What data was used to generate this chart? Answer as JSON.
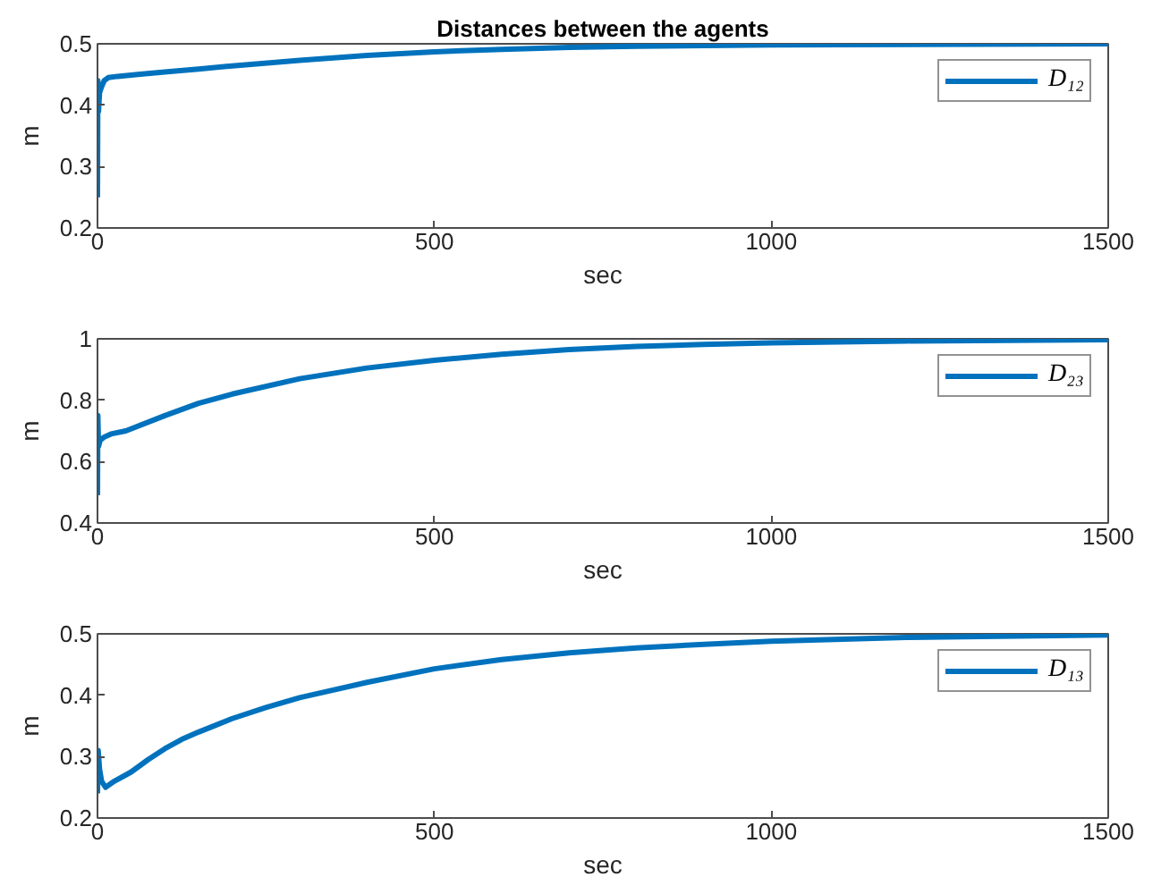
{
  "chart_data": [
    {
      "type": "line",
      "title": "Distances between the agents",
      "xlabel": "sec",
      "ylabel": "m",
      "x": [
        0,
        0.5,
        1.5,
        3,
        6,
        10,
        16,
        30,
        60,
        100,
        150,
        200,
        300,
        400,
        500,
        600,
        700,
        800,
        900,
        1000,
        1200,
        1500
      ],
      "series": [
        {
          "name": "D₁₂",
          "color": "#0072bd",
          "values": [
            0.25,
            0.44,
            0.39,
            0.42,
            0.43,
            0.44,
            0.445,
            0.447,
            0.45,
            0.454,
            0.459,
            0.464,
            0.473,
            0.481,
            0.487,
            0.491,
            0.494,
            0.496,
            0.497,
            0.498,
            0.499,
            0.5
          ]
        }
      ],
      "xlim": [
        0,
        1500
      ],
      "xticks": [
        0,
        500,
        1000,
        1500
      ],
      "ylim": [
        0.2,
        0.5
      ],
      "yticks": [
        0.2,
        0.3,
        0.4,
        0.5
      ],
      "legend": "top right"
    },
    {
      "type": "line",
      "xlabel": "sec",
      "ylabel": "m",
      "x": [
        0,
        0.5,
        1.5,
        4,
        10,
        20,
        42,
        100,
        150,
        200,
        300,
        400,
        500,
        600,
        700,
        800,
        900,
        1000,
        1200,
        1500
      ],
      "series": [
        {
          "name": "D₂₃",
          "color": "#0072bd",
          "values": [
            0.49,
            0.75,
            0.65,
            0.67,
            0.68,
            0.69,
            0.7,
            0.75,
            0.79,
            0.82,
            0.87,
            0.905,
            0.93,
            0.95,
            0.965,
            0.975,
            0.982,
            0.987,
            0.993,
            0.997
          ]
        }
      ],
      "xlim": [
        0,
        1500
      ],
      "xticks": [
        0,
        500,
        1000,
        1500
      ],
      "ylim": [
        0.4,
        1
      ],
      "yticks": [
        0.4,
        0.6,
        0.8,
        1
      ],
      "legend": "top right"
    },
    {
      "type": "line",
      "xlabel": "sec",
      "ylabel": "m",
      "x": [
        0,
        1,
        3,
        6,
        12,
        25,
        50,
        75,
        100,
        125,
        150,
        200,
        250,
        300,
        400,
        500,
        600,
        700,
        800,
        900,
        1000,
        1200,
        1500
      ],
      "series": [
        {
          "name": "D₁₃",
          "color": "#0072bd",
          "values": [
            0.24,
            0.31,
            0.28,
            0.26,
            0.25,
            0.26,
            0.275,
            0.295,
            0.313,
            0.328,
            0.34,
            0.362,
            0.38,
            0.396,
            0.421,
            0.443,
            0.458,
            0.469,
            0.477,
            0.483,
            0.488,
            0.494,
            0.498
          ]
        }
      ],
      "xlim": [
        0,
        1500
      ],
      "xticks": [
        0,
        500,
        1000,
        1500
      ],
      "ylim": [
        0.2,
        0.5
      ],
      "yticks": [
        0.2,
        0.3,
        0.4,
        0.5
      ],
      "legend": "top right"
    }
  ]
}
